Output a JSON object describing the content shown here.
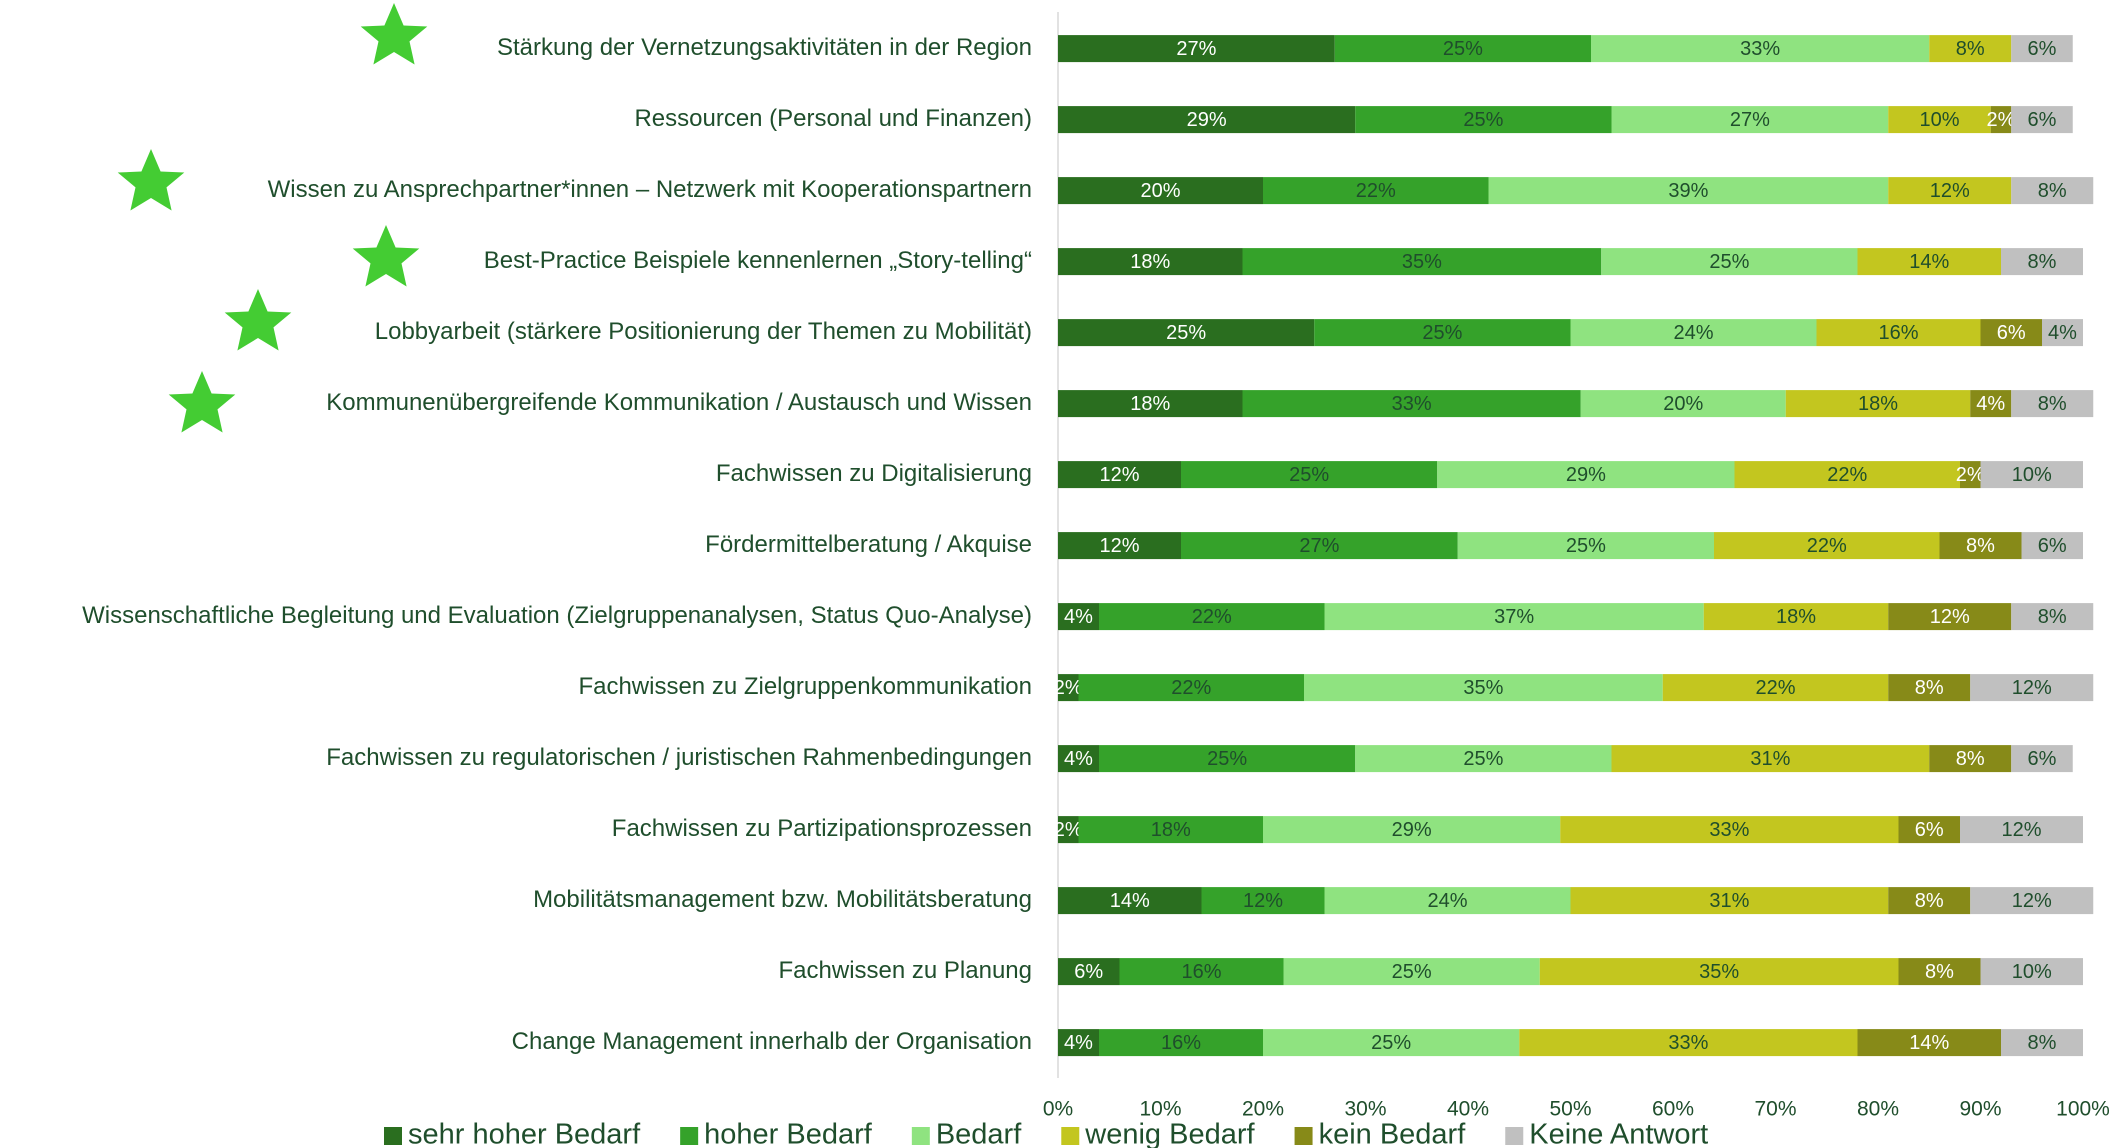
{
  "chart_data": {
    "type": "stacked-bar-horizontal",
    "categories": [
      "Stärkung der Vernetzungsaktivitäten in der Region",
      "Ressourcen (Personal und Finanzen)",
      "Wissen zu Ansprechpartner*innen – Netzwerk mit Kooperationspartnern",
      "Best-Practice Beispiele kennenlernen „Story-telling“",
      "Lobbyarbeit (stärkere Positionierung der Themen zu Mobilität)",
      "Kommunenübergreifende Kommunikation / Austausch und Wissen",
      "Fachwissen zu Digitalisierung",
      "Fördermittelberatung / Akquise",
      "Wissenschaftliche Begleitung und Evaluation (Zielgruppenanalysen, Status Quo-Analyse)",
      "Fachwissen zu Zielgruppenkommunikation",
      "Fachwissen zu regulatorischen / juristischen Rahmenbedingungen",
      "Fachwissen zu Partizipationsprozessen",
      "Mobilitätsmanagement bzw. Mobilitätsberatung",
      "Fachwissen zu Planung",
      "Change Management innerhalb der Organisation"
    ],
    "series": [
      {
        "name": "sehr hoher Bedarf",
        "color": "#2a6e1f",
        "label_color": "#ffffff",
        "values": [
          27,
          29,
          20,
          18,
          25,
          18,
          12,
          12,
          4,
          2,
          4,
          2,
          14,
          6,
          4
        ],
        "value_labels": [
          "27%",
          "29%",
          "20%",
          "18%",
          "25%",
          "18%",
          "12%",
          "12%",
          "4%",
          "2%",
          "4%",
          "2%",
          "14%",
          "6%",
          "4%"
        ]
      },
      {
        "name": "hoher Bedarf",
        "color": "#35a22a",
        "label_color": "#1f4e2c",
        "values": [
          25,
          25,
          22,
          35,
          25,
          33,
          25,
          27,
          22,
          22,
          25,
          18,
          12,
          16,
          16
        ],
        "value_labels": [
          "25%",
          "25%",
          "22%",
          "35%",
          "25%",
          "33%",
          "25%",
          "27%",
          "22%",
          "22%",
          "25%",
          "18%",
          "12%",
          "16%",
          "16%"
        ]
      },
      {
        "name": "Bedarf",
        "color": "#8fe380",
        "label_color": "#1f4e2c",
        "values": [
          33,
          27,
          39,
          25,
          24,
          20,
          29,
          25,
          37,
          35,
          25,
          29,
          24,
          25,
          25
        ],
        "value_labels": [
          "33%",
          "27%",
          "39%",
          "25%",
          "24%",
          "20%",
          "29%",
          "25%",
          "37%",
          "35%",
          "25%",
          "29%",
          "24%",
          "25%",
          "25%"
        ]
      },
      {
        "name": "wenig Bedarf",
        "color": "#c3c61f",
        "label_color": "#1f4e2c",
        "values": [
          8,
          10,
          12,
          14,
          16,
          18,
          22,
          22,
          18,
          22,
          31,
          33,
          31,
          35,
          33
        ],
        "value_labels": [
          "8%",
          "10%",
          "12%",
          "14%",
          "16%",
          "18%",
          "22%",
          "22%",
          "18%",
          "22%",
          "31%",
          "33%",
          "31%",
          "35%",
          "33%"
        ]
      },
      {
        "name": "kein Bedarf",
        "color": "#878a18",
        "label_color": "#ffffff",
        "values": [
          null,
          2,
          null,
          null,
          6,
          4,
          2,
          8,
          12,
          8,
          8,
          6,
          8,
          8,
          14
        ],
        "value_labels": [
          null,
          "2%",
          null,
          null,
          "6%",
          "4%",
          "2%",
          "8%",
          "12%",
          "8%",
          "8%",
          "6%",
          "8%",
          "8%",
          "14%"
        ]
      },
      {
        "name": "Keine Antwort",
        "color": "#c0c0c0",
        "label_color": "#1f4e2c",
        "values": [
          6,
          6,
          8,
          8,
          4,
          8,
          10,
          6,
          8,
          12,
          6,
          12,
          12,
          10,
          8
        ],
        "value_labels": [
          "6%",
          "6%",
          "8%",
          "8%",
          "4%",
          "8%",
          "10%",
          "6%",
          "8%",
          "12%",
          "6%",
          "12%",
          "12%",
          "10%",
          "8%"
        ]
      }
    ],
    "xlim": [
      0,
      100
    ],
    "xticks": [
      {
        "value": 0,
        "label": "0%"
      },
      {
        "value": 10,
        "label": "10%"
      },
      {
        "value": 20,
        "label": "20%"
      },
      {
        "value": 30,
        "label": "30%"
      },
      {
        "value": 40,
        "label": "40%"
      },
      {
        "value": 50,
        "label": "50%"
      },
      {
        "value": 60,
        "label": "60%"
      },
      {
        "value": 70,
        "label": "70%"
      },
      {
        "value": 80,
        "label": "80%"
      },
      {
        "value": 90,
        "label": "90%"
      },
      {
        "value": 100,
        "label": "100%"
      }
    ],
    "legend": "bottom"
  }
}
